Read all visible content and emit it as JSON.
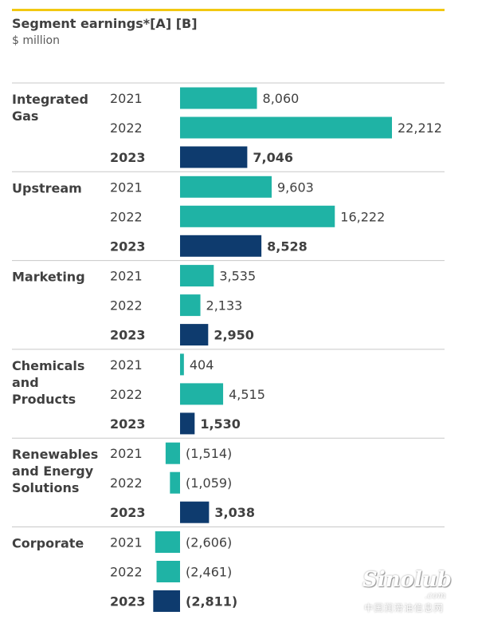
{
  "chart_data": {
    "type": "bar",
    "orientation": "horizontal",
    "title": "Segment earnings",
    "title_suffix": "*[A] [B]",
    "subtitle": "$ million",
    "units": "$ million",
    "years": [
      "2021",
      "2022",
      "2023"
    ],
    "highlight_year": "2023",
    "colors": {
      "prior_years": "#1fb3a5",
      "highlight": "#0e3b6e",
      "rule": "#f2c811"
    },
    "groups": [
      {
        "name": "Integrated Gas",
        "label_lines": [
          "Integrated",
          "Gas"
        ],
        "values": [
          8060,
          22212,
          7046
        ],
        "labels": [
          "8,060",
          "22,212",
          "7,046"
        ]
      },
      {
        "name": "Upstream",
        "label_lines": [
          "Upstream"
        ],
        "values": [
          9603,
          16222,
          8528
        ],
        "labels": [
          "9,603",
          "16,222",
          "8,528"
        ]
      },
      {
        "name": "Marketing",
        "label_lines": [
          "Marketing"
        ],
        "values": [
          3535,
          2133,
          2950
        ],
        "labels": [
          "3,535",
          "2,133",
          "2,950"
        ]
      },
      {
        "name": "Chemicals and Products",
        "label_lines": [
          "Chemicals",
          "and",
          "Products"
        ],
        "values": [
          404,
          4515,
          1530
        ],
        "labels": [
          "404",
          "4,515",
          "1,530"
        ]
      },
      {
        "name": "Renewables and Energy Solutions",
        "label_lines": [
          "Renewables",
          "and Energy",
          "Solutions"
        ],
        "values": [
          -1514,
          -1059,
          3038
        ],
        "labels": [
          "(1,514)",
          "(1,059)",
          "3,038"
        ]
      },
      {
        "name": "Corporate",
        "label_lines": [
          "Corporate"
        ],
        "values": [
          -2606,
          -2461,
          -2811
        ],
        "labels": [
          "(2,606)",
          "(2,461)",
          "(2,811)"
        ]
      }
    ]
  },
  "watermark": {
    "logo": "Sinolub",
    "domain": ".com",
    "caption": "中国润滑油信息网"
  }
}
